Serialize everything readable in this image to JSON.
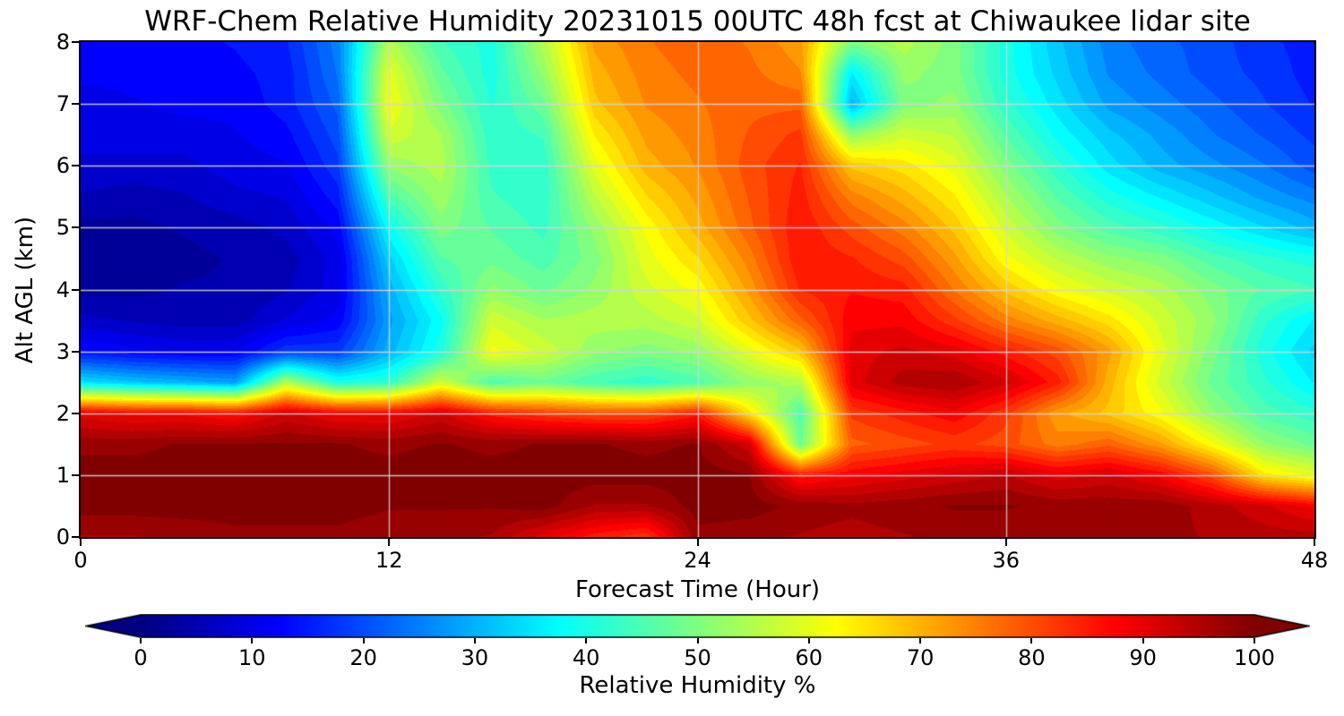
{
  "chart_data": {
    "type": "heatmap",
    "title": "WRF-Chem Relative Humidity 20231015 00UTC 48h fcst at Chiwaukee lidar site",
    "xlabel": "Forecast Time (Hour)",
    "ylabel": "Alt AGL (km)",
    "xlim": [
      0,
      48
    ],
    "ylim": [
      0,
      8
    ],
    "xticks": [
      0,
      12,
      24,
      36,
      48
    ],
    "yticks": [
      0,
      1,
      2,
      3,
      4,
      5,
      6,
      7,
      8
    ],
    "grid": true,
    "legend": "none",
    "colormap": "jet",
    "colorbar": {
      "label": "Relative Humidity %",
      "ticks": [
        0,
        10,
        20,
        30,
        40,
        50,
        60,
        70,
        80,
        90,
        100
      ],
      "min": 0,
      "max": 100,
      "extend": "both",
      "orientation": "horizontal"
    },
    "x_hours": [
      0,
      2,
      4,
      6,
      8,
      10,
      12,
      14,
      16,
      18,
      20,
      22,
      24,
      26,
      28,
      30,
      32,
      34,
      36,
      38,
      40,
      42,
      44,
      46,
      48
    ],
    "y_km": [
      0,
      0.5,
      1,
      1.5,
      2,
      2.5,
      3,
      3.5,
      4,
      4.5,
      5,
      5.5,
      6,
      6.5,
      7,
      7.5,
      8
    ],
    "values_rh_percent_by_time": [
      [
        96,
        100,
        100,
        98,
        90,
        35,
        14,
        7,
        3,
        2,
        3,
        6,
        8,
        10,
        10,
        12,
        12
      ],
      [
        96,
        100,
        100,
        98,
        88,
        32,
        12,
        6,
        3,
        2,
        3,
        5,
        8,
        10,
        11,
        12,
        12
      ],
      [
        97,
        100,
        100,
        99,
        88,
        30,
        11,
        5,
        4,
        3,
        4,
        6,
        8,
        10,
        12,
        12,
        13
      ],
      [
        98,
        100,
        100,
        99,
        86,
        28,
        11,
        5,
        4,
        4,
        5,
        8,
        10,
        11,
        12,
        13,
        14
      ],
      [
        98,
        100,
        100,
        99,
        92,
        55,
        18,
        9,
        6,
        5,
        7,
        9,
        11,
        13,
        15,
        15,
        16
      ],
      [
        98,
        100,
        100,
        99,
        88,
        40,
        18,
        12,
        10,
        10,
        12,
        15,
        18,
        20,
        22,
        24,
        25
      ],
      [
        97,
        99,
        100,
        98,
        88,
        42,
        30,
        28,
        30,
        33,
        38,
        45,
        52,
        58,
        62,
        60,
        55
      ],
      [
        97,
        99,
        100,
        99,
        92,
        58,
        40,
        38,
        42,
        46,
        50,
        53,
        55,
        54,
        50,
        47,
        44
      ],
      [
        96,
        99,
        100,
        98,
        85,
        45,
        62,
        58,
        52,
        48,
        46,
        44,
        43,
        42,
        41,
        40,
        40
      ],
      [
        90,
        100,
        100,
        99,
        82,
        48,
        58,
        54,
        48,
        45,
        43,
        42,
        42,
        44,
        48,
        52,
        55
      ],
      [
        85,
        96,
        100,
        99,
        80,
        44,
        52,
        55,
        52,
        50,
        52,
        56,
        60,
        64,
        68,
        70,
        72
      ],
      [
        82,
        96,
        100,
        98,
        80,
        42,
        50,
        55,
        58,
        60,
        62,
        66,
        70,
        72,
        74,
        75,
        76
      ],
      [
        98,
        100,
        100,
        99,
        85,
        45,
        52,
        58,
        62,
        66,
        70,
        72,
        74,
        75,
        76,
        77,
        78
      ],
      [
        97,
        100,
        99,
        92,
        65,
        52,
        60,
        68,
        72,
        75,
        78,
        79,
        80,
        79,
        78,
        77,
        76
      ],
      [
        96,
        98,
        85,
        48,
        45,
        55,
        68,
        78,
        84,
        86,
        86,
        85,
        84,
        82,
        78,
        74,
        72
      ],
      [
        95,
        97,
        88,
        78,
        82,
        90,
        90,
        88,
        86,
        84,
        80,
        75,
        68,
        52,
        30,
        36,
        50
      ],
      [
        96,
        98,
        90,
        80,
        85,
        95,
        92,
        88,
        85,
        80,
        75,
        70,
        65,
        58,
        50,
        52,
        55
      ],
      [
        97,
        99,
        92,
        82,
        88,
        96,
        90,
        82,
        76,
        72,
        68,
        64,
        60,
        56,
        52,
        50,
        50
      ],
      [
        97,
        99,
        94,
        80,
        82,
        92,
        85,
        75,
        68,
        62,
        58,
        54,
        50,
        46,
        42,
        40,
        40
      ],
      [
        97,
        98,
        90,
        75,
        72,
        85,
        80,
        70,
        62,
        56,
        50,
        46,
        42,
        38,
        35,
        33,
        32
      ],
      [
        97,
        98,
        92,
        78,
        68,
        70,
        72,
        65,
        58,
        52,
        45,
        40,
        35,
        32,
        28,
        26,
        25
      ],
      [
        97,
        98,
        88,
        72,
        62,
        58,
        60,
        58,
        55,
        50,
        42,
        36,
        30,
        28,
        25,
        23,
        22
      ],
      [
        96,
        95,
        80,
        62,
        52,
        48,
        50,
        52,
        50,
        45,
        38,
        32,
        27,
        24,
        22,
        20,
        20
      ],
      [
        95,
        92,
        65,
        52,
        45,
        42,
        40,
        42,
        46,
        42,
        34,
        28,
        24,
        21,
        19,
        18,
        17
      ],
      [
        95,
        88,
        60,
        48,
        42,
        36,
        33,
        36,
        44,
        40,
        30,
        25,
        20,
        18,
        16,
        15,
        15
      ]
    ]
  },
  "colors": {
    "figure_bg": "#ffffff",
    "text": "#000000",
    "grid_line": "#d5d5d5",
    "spine": "#000000",
    "cmap_low": "#00007f",
    "cmap_high": "#7f0000"
  }
}
